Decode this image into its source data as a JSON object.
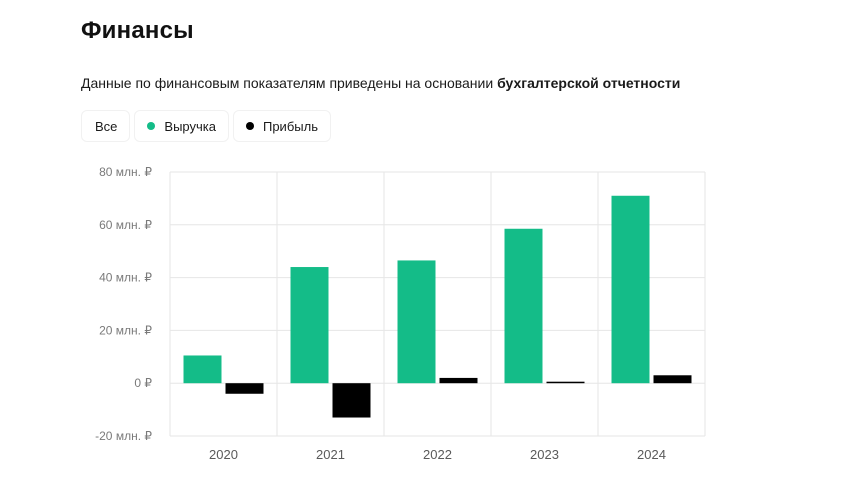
{
  "header": {
    "title": "Финансы",
    "subtitle_prefix": "Данные по финансовым показателям приведены на основании ",
    "subtitle_bold": "бухгалтерской отчетности"
  },
  "filters": {
    "all_label": "Все",
    "revenue_label": "Выручка",
    "profit_label": "Прибыль"
  },
  "colors": {
    "revenue": "#14bc88",
    "profit": "#000000",
    "grid": "#e6e6e6"
  },
  "chart_data": {
    "type": "bar",
    "categories": [
      "2020",
      "2021",
      "2022",
      "2023",
      "2024"
    ],
    "series": [
      {
        "name": "Выручка",
        "values": [
          10.5,
          44,
          46.5,
          58.5,
          71
        ]
      },
      {
        "name": "Прибыль",
        "values": [
          -4,
          -13,
          2,
          0.5,
          3
        ]
      }
    ],
    "ylim": [
      -20,
      80
    ],
    "yticks": [
      80,
      60,
      40,
      20,
      0,
      -20
    ],
    "ytick_labels": [
      "80 млн. ₽",
      "60 млн. ₽",
      "40 млн. ₽",
      "20 млн. ₽",
      "0 ₽",
      "-20 млн. ₽"
    ],
    "title": "",
    "xlabel": "",
    "ylabel": ""
  }
}
